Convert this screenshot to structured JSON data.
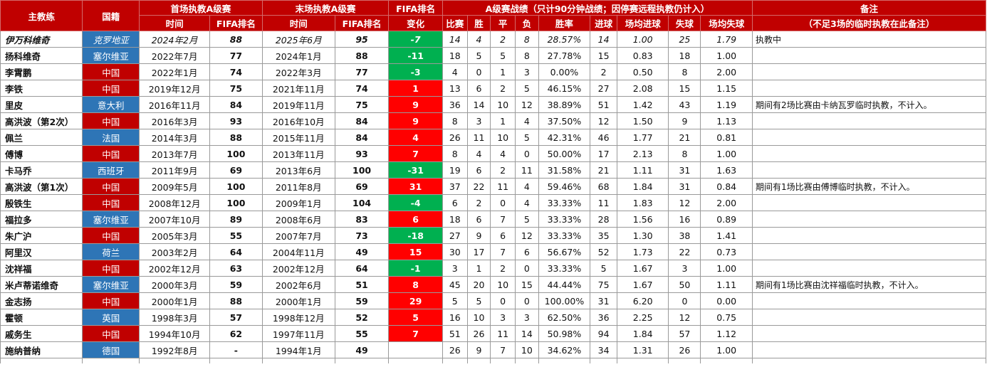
{
  "colors": {
    "header_bg": "#c00000",
    "china_bg": "#c00000",
    "foreign_bg": "#2e75b6",
    "rank_improved_bg": "#00b050",
    "rank_dropped_bg": "#ff0000"
  },
  "headers": {
    "coach": "主教练",
    "nationality": "国籍",
    "first_group": "首场执教A级赛",
    "last_group": "末场执教A级赛",
    "fifa_change_group": "FIFA排名",
    "record_group": "A级赛战绩（只计90分钟战绩；因停赛远程执教仍计入）",
    "note_group": "备注",
    "time": "时间",
    "fifa_rank": "FIFA排名",
    "change": "变化",
    "matches": "比赛",
    "wins": "胜",
    "draws": "平",
    "losses": "负",
    "win_rate": "胜率",
    "goals_for": "进球",
    "avg_for": "场均进球",
    "goals_against": "失球",
    "avg_against": "场均失球",
    "note_sub": "（不足3场的临时执教在此备注）"
  },
  "rows": [
    {
      "name": "伊万科维奇",
      "nat": "克罗地亚",
      "nat_type": "foreign",
      "first_time": "2024年2月",
      "first_rank": "88",
      "last_time": "2025年6月",
      "last_rank": "95",
      "change": "-7",
      "change_type": "down",
      "p": "14",
      "w": "4",
      "d": "2",
      "l": "8",
      "rate": "28.57%",
      "gf": "14",
      "avg_gf": "1.00",
      "ga": "25",
      "avg_ga": "1.79",
      "note": "执教中",
      "current": true
    },
    {
      "name": "扬科维奇",
      "nat": "塞尔维亚",
      "nat_type": "foreign",
      "first_time": "2022年7月",
      "first_rank": "77",
      "last_time": "2024年1月",
      "last_rank": "88",
      "change": "-11",
      "change_type": "down",
      "p": "18",
      "w": "5",
      "d": "5",
      "l": "8",
      "rate": "27.78%",
      "gf": "15",
      "avg_gf": "0.83",
      "ga": "18",
      "avg_ga": "1.00",
      "note": ""
    },
    {
      "name": "李霄鹏",
      "nat": "中国",
      "nat_type": "china",
      "first_time": "2022年1月",
      "first_rank": "74",
      "last_time": "2022年3月",
      "last_rank": "77",
      "change": "-3",
      "change_type": "down",
      "p": "4",
      "w": "0",
      "d": "1",
      "l": "3",
      "rate": "0.00%",
      "gf": "2",
      "avg_gf": "0.50",
      "ga": "8",
      "avg_ga": "2.00",
      "note": ""
    },
    {
      "name": "李铁",
      "nat": "中国",
      "nat_type": "china",
      "first_time": "2019年12月",
      "first_rank": "75",
      "last_time": "2021年11月",
      "last_rank": "74",
      "change": "1",
      "change_type": "up",
      "p": "13",
      "w": "6",
      "d": "2",
      "l": "5",
      "rate": "46.15%",
      "gf": "27",
      "avg_gf": "2.08",
      "ga": "15",
      "avg_ga": "1.15",
      "note": ""
    },
    {
      "name": "里皮",
      "nat": "意大利",
      "nat_type": "foreign",
      "first_time": "2016年11月",
      "first_rank": "84",
      "last_time": "2019年11月",
      "last_rank": "75",
      "change": "9",
      "change_type": "up",
      "p": "36",
      "w": "14",
      "d": "10",
      "l": "12",
      "rate": "38.89%",
      "gf": "51",
      "avg_gf": "1.42",
      "ga": "43",
      "avg_ga": "1.19",
      "note": "期间有2场比赛由卡纳瓦罗临时执教，不计入。"
    },
    {
      "name": "高洪波（第2次）",
      "nat": "中国",
      "nat_type": "china",
      "first_time": "2016年3月",
      "first_rank": "93",
      "last_time": "2016年10月",
      "last_rank": "84",
      "change": "9",
      "change_type": "up",
      "p": "8",
      "w": "3",
      "d": "1",
      "l": "4",
      "rate": "37.50%",
      "gf": "12",
      "avg_gf": "1.50",
      "ga": "9",
      "avg_ga": "1.13",
      "note": ""
    },
    {
      "name": "佩兰",
      "nat": "法国",
      "nat_type": "foreign",
      "first_time": "2014年3月",
      "first_rank": "88",
      "last_time": "2015年11月",
      "last_rank": "84",
      "change": "4",
      "change_type": "up",
      "p": "26",
      "w": "11",
      "d": "10",
      "l": "5",
      "rate": "42.31%",
      "gf": "46",
      "avg_gf": "1.77",
      "ga": "21",
      "avg_ga": "0.81",
      "note": ""
    },
    {
      "name": "傅博",
      "nat": "中国",
      "nat_type": "china",
      "first_time": "2013年7月",
      "first_rank": "100",
      "last_time": "2013年11月",
      "last_rank": "93",
      "change": "7",
      "change_type": "up",
      "p": "8",
      "w": "4",
      "d": "4",
      "l": "0",
      "rate": "50.00%",
      "gf": "17",
      "avg_gf": "2.13",
      "ga": "8",
      "avg_ga": "1.00",
      "note": ""
    },
    {
      "name": "卡马乔",
      "nat": "西班牙",
      "nat_type": "foreign",
      "first_time": "2011年9月",
      "first_rank": "69",
      "last_time": "2013年6月",
      "last_rank": "100",
      "change": "-31",
      "change_type": "down",
      "p": "19",
      "w": "6",
      "d": "2",
      "l": "11",
      "rate": "31.58%",
      "gf": "21",
      "avg_gf": "1.11",
      "ga": "31",
      "avg_ga": "1.63",
      "note": ""
    },
    {
      "name": "高洪波（第1次）",
      "nat": "中国",
      "nat_type": "china",
      "first_time": "2009年5月",
      "first_rank": "100",
      "last_time": "2011年8月",
      "last_rank": "69",
      "change": "31",
      "change_type": "up",
      "p": "37",
      "w": "22",
      "d": "11",
      "l": "4",
      "rate": "59.46%",
      "gf": "68",
      "avg_gf": "1.84",
      "ga": "31",
      "avg_ga": "0.84",
      "note": "期间有1场比赛由傅博临时执教，不计入。"
    },
    {
      "name": "殷铁生",
      "nat": "中国",
      "nat_type": "china",
      "first_time": "2008年12月",
      "first_rank": "100",
      "last_time": "2009年1月",
      "last_rank": "104",
      "change": "-4",
      "change_type": "down",
      "p": "6",
      "w": "2",
      "d": "0",
      "l": "4",
      "rate": "33.33%",
      "gf": "11",
      "avg_gf": "1.83",
      "ga": "12",
      "avg_ga": "2.00",
      "note": ""
    },
    {
      "name": "福拉多",
      "nat": "塞尔维亚",
      "nat_type": "foreign",
      "first_time": "2007年10月",
      "first_rank": "89",
      "last_time": "2008年6月",
      "last_rank": "83",
      "change": "6",
      "change_type": "up",
      "p": "18",
      "w": "6",
      "d": "7",
      "l": "5",
      "rate": "33.33%",
      "gf": "28",
      "avg_gf": "1.56",
      "ga": "16",
      "avg_ga": "0.89",
      "note": ""
    },
    {
      "name": "朱广沪",
      "nat": "中国",
      "nat_type": "china",
      "first_time": "2005年3月",
      "first_rank": "55",
      "last_time": "2007年7月",
      "last_rank": "73",
      "change": "-18",
      "change_type": "down",
      "p": "27",
      "w": "9",
      "d": "6",
      "l": "12",
      "rate": "33.33%",
      "gf": "35",
      "avg_gf": "1.30",
      "ga": "38",
      "avg_ga": "1.41",
      "note": ""
    },
    {
      "name": "阿里汉",
      "nat": "荷兰",
      "nat_type": "foreign",
      "first_time": "2003年2月",
      "first_rank": "64",
      "last_time": "2004年11月",
      "last_rank": "49",
      "change": "15",
      "change_type": "up",
      "p": "30",
      "w": "17",
      "d": "7",
      "l": "6",
      "rate": "56.67%",
      "gf": "52",
      "avg_gf": "1.73",
      "ga": "22",
      "avg_ga": "0.73",
      "note": ""
    },
    {
      "name": "沈祥福",
      "nat": "中国",
      "nat_type": "china",
      "first_time": "2002年12月",
      "first_rank": "63",
      "last_time": "2002年12月",
      "last_rank": "64",
      "change": "-1",
      "change_type": "down",
      "p": "3",
      "w": "1",
      "d": "2",
      "l": "0",
      "rate": "33.33%",
      "gf": "5",
      "avg_gf": "1.67",
      "ga": "3",
      "avg_ga": "1.00",
      "note": ""
    },
    {
      "name": "米卢蒂诺维奇",
      "nat": "塞尔维亚",
      "nat_type": "foreign",
      "first_time": "2000年3月",
      "first_rank": "59",
      "last_time": "2002年6月",
      "last_rank": "51",
      "change": "8",
      "change_type": "up",
      "p": "45",
      "w": "20",
      "d": "10",
      "l": "15",
      "rate": "44.44%",
      "gf": "75",
      "avg_gf": "1.67",
      "ga": "50",
      "avg_ga": "1.11",
      "note": "期间有1场比赛由沈祥福临时执教，不计入。"
    },
    {
      "name": "金志扬",
      "nat": "中国",
      "nat_type": "china",
      "first_time": "2000年1月",
      "first_rank": "88",
      "last_time": "2000年1月",
      "last_rank": "59",
      "change": "29",
      "change_type": "up",
      "p": "5",
      "w": "5",
      "d": "0",
      "l": "0",
      "rate": "100.00%",
      "gf": "31",
      "avg_gf": "6.20",
      "ga": "0",
      "avg_ga": "0.00",
      "note": ""
    },
    {
      "name": "霍顿",
      "nat": "英国",
      "nat_type": "foreign",
      "first_time": "1998年3月",
      "first_rank": "57",
      "last_time": "1998年12月",
      "last_rank": "52",
      "change": "5",
      "change_type": "up",
      "p": "16",
      "w": "10",
      "d": "3",
      "l": "3",
      "rate": "62.50%",
      "gf": "36",
      "avg_gf": "2.25",
      "ga": "12",
      "avg_ga": "0.75",
      "note": ""
    },
    {
      "name": "戚务生",
      "nat": "中国",
      "nat_type": "china",
      "first_time": "1994年10月",
      "first_rank": "62",
      "last_time": "1997年11月",
      "last_rank": "55",
      "change": "7",
      "change_type": "up",
      "p": "51",
      "w": "26",
      "d": "11",
      "l": "14",
      "rate": "50.98%",
      "gf": "94",
      "avg_gf": "1.84",
      "ga": "57",
      "avg_ga": "1.12",
      "note": ""
    },
    {
      "name": "施纳普纳",
      "nat": "德国",
      "nat_type": "foreign",
      "first_time": "1992年8月",
      "first_rank": "-",
      "last_time": "1994年1月",
      "last_rank": "49",
      "change": "",
      "change_type": "none",
      "p": "26",
      "w": "9",
      "d": "7",
      "l": "10",
      "rate": "34.62%",
      "gf": "34",
      "avg_gf": "1.31",
      "ga": "26",
      "avg_ga": "1.00",
      "note": ""
    }
  ]
}
